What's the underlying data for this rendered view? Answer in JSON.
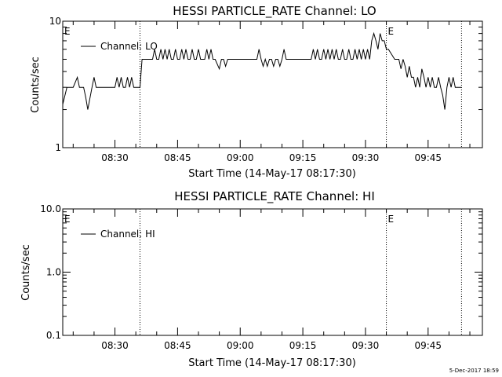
{
  "chart_data": [
    {
      "type": "line",
      "title": "HESSI PARTICLE_RATE Channel: LO",
      "xlabel": "Start Time (14-May-17 08:17:30)",
      "ylabel": "Counts/sec",
      "yscale": "log",
      "ylim": [
        1,
        10
      ],
      "xlim": [
        "08:17:30",
        "09:58:00"
      ],
      "x_ticks": [
        "08:30",
        "08:45",
        "09:00",
        "09:15",
        "09:30",
        "09:45"
      ],
      "y_ticks": [
        "1",
        "10"
      ],
      "legend": "top-left",
      "event_markers": [
        {
          "label": "E",
          "time": "08:17:30"
        },
        {
          "label": "E",
          "time": "09:35:00"
        }
      ],
      "vertical_lines": [
        "08:36:00",
        "09:35:00",
        "09:53:00"
      ],
      "series": [
        {
          "name": "Channel: LO",
          "color": "#000000",
          "x": [
            "08:17:30",
            "08:18:30",
            "08:20:00",
            "08:21:00",
            "08:21:30",
            "08:22:30",
            "08:23:00",
            "08:23:30",
            "08:24:30",
            "08:25:00",
            "08:25:30",
            "08:30:00",
            "08:30:30",
            "08:31:00",
            "08:31:30",
            "08:32:00",
            "08:32:30",
            "08:33:00",
            "08:33:30",
            "08:34:00",
            "08:34:30",
            "08:35:00",
            "08:36:00",
            "08:36:30",
            "08:39:00",
            "08:39:30",
            "08:40:00",
            "08:40:30",
            "08:41:00",
            "08:41:30",
            "08:42:00",
            "08:42:30",
            "08:43:00",
            "08:43:30",
            "08:44:00",
            "08:44:30",
            "08:45:00",
            "08:45:30",
            "08:46:00",
            "08:46:30",
            "08:47:00",
            "08:47:30",
            "08:48:00",
            "08:48:30",
            "08:49:00",
            "08:49:30",
            "08:50:00",
            "08:50:30",
            "08:51:30",
            "08:52:00",
            "08:52:30",
            "08:53:00",
            "08:53:30",
            "08:54:00",
            "08:55:00",
            "08:55:30",
            "08:56:00",
            "08:56:30",
            "08:57:00",
            "08:57:30",
            "09:04:00",
            "09:04:30",
            "09:05:00",
            "09:05:30",
            "09:06:00",
            "09:06:30",
            "09:07:00",
            "09:07:30",
            "09:08:00",
            "09:08:30",
            "09:09:00",
            "09:09:30",
            "09:10:00",
            "09:10:30",
            "09:11:00",
            "09:11:30",
            "09:17:00",
            "09:17:30",
            "09:18:00",
            "09:18:30",
            "09:19:00",
            "09:19:30",
            "09:20:00",
            "09:20:30",
            "09:21:00",
            "09:21:30",
            "09:22:00",
            "09:22:30",
            "09:23:00",
            "09:23:30",
            "09:24:00",
            "09:24:30",
            "09:25:00",
            "09:25:30",
            "09:26:00",
            "09:26:30",
            "09:27:00",
            "09:27:30",
            "09:28:00",
            "09:28:30",
            "09:29:00",
            "09:29:30",
            "09:30:00",
            "09:30:30",
            "09:31:00",
            "09:31:30",
            "09:32:00",
            "09:32:30",
            "09:33:00",
            "09:33:30",
            "09:34:00",
            "09:34:30",
            "09:35:00",
            "09:35:30",
            "09:37:00",
            "09:37:30",
            "09:38:00",
            "09:38:30",
            "09:39:00",
            "09:39:30",
            "09:40:00",
            "09:40:30",
            "09:41:00",
            "09:41:30",
            "09:42:00",
            "09:42:30",
            "09:43:00",
            "09:43:30",
            "09:44:00",
            "09:44:30",
            "09:45:00",
            "09:45:30",
            "09:46:00",
            "09:46:30",
            "09:47:00",
            "09:47:30",
            "09:48:00",
            "09:48:30",
            "09:49:00",
            "09:49:30",
            "09:50:00",
            "09:50:30",
            "09:51:00",
            "09:51:30",
            "09:52:00",
            "09:53:00"
          ],
          "y": [
            2.2,
            3,
            3,
            3.6,
            3,
            3,
            2.5,
            2,
            3,
            3.6,
            3,
            3,
            3.6,
            3,
            3.6,
            3,
            3,
            3.6,
            3,
            3.6,
            3,
            3,
            3,
            5,
            5,
            6,
            5,
            5,
            6,
            5,
            6,
            5,
            6,
            5,
            5,
            6,
            5,
            5,
            6,
            5,
            6,
            5,
            5,
            6,
            5,
            5,
            6,
            5,
            5,
            6,
            5,
            6,
            5,
            5,
            4.2,
            5,
            5,
            4.4,
            5,
            5,
            5,
            6,
            5,
            4.4,
            5,
            4.4,
            5,
            5,
            4.4,
            5,
            5,
            4.4,
            5,
            6,
            5,
            5,
            5,
            6,
            5,
            6,
            5,
            5,
            6,
            5,
            6,
            5,
            6,
            5,
            6,
            5,
            5,
            6,
            5,
            5,
            6,
            5,
            5,
            6,
            5,
            6,
            5,
            6,
            5,
            6,
            5,
            7,
            8,
            7,
            6,
            8,
            7,
            7,
            6,
            6,
            5,
            5,
            5,
            4.2,
            5,
            4.4,
            3.6,
            4.4,
            3.6,
            3.6,
            3,
            3.6,
            3,
            4.2,
            3.6,
            3,
            3.6,
            3,
            3.6,
            3,
            3,
            3.6,
            3,
            2.6,
            2,
            3,
            3.6,
            3,
            3.6,
            3,
            3,
            3
          ]
        }
      ]
    },
    {
      "type": "line",
      "title": "HESSI PARTICLE_RATE Channel: HI",
      "xlabel": "Start Time (14-May-17 08:17:30)",
      "ylabel": "Counts/sec",
      "yscale": "log",
      "ylim": [
        0.1,
        10
      ],
      "xlim": [
        "08:17:30",
        "09:58:00"
      ],
      "x_ticks": [
        "08:30",
        "08:45",
        "09:00",
        "09:15",
        "09:30",
        "09:45"
      ],
      "y_ticks": [
        "0.1",
        "1.0",
        "10.0"
      ],
      "legend": "top-left",
      "event_markers": [
        {
          "label": "E",
          "time": "08:17:30"
        },
        {
          "label": "E",
          "time": "09:35:00"
        }
      ],
      "vertical_lines": [
        "08:36:00",
        "09:35:00",
        "09:53:00"
      ],
      "series": [
        {
          "name": "Channel: HI",
          "color": "#000000",
          "x": [],
          "y": []
        }
      ]
    }
  ],
  "footer": {
    "date_stamp": "5-Dec-2017 18:59"
  }
}
